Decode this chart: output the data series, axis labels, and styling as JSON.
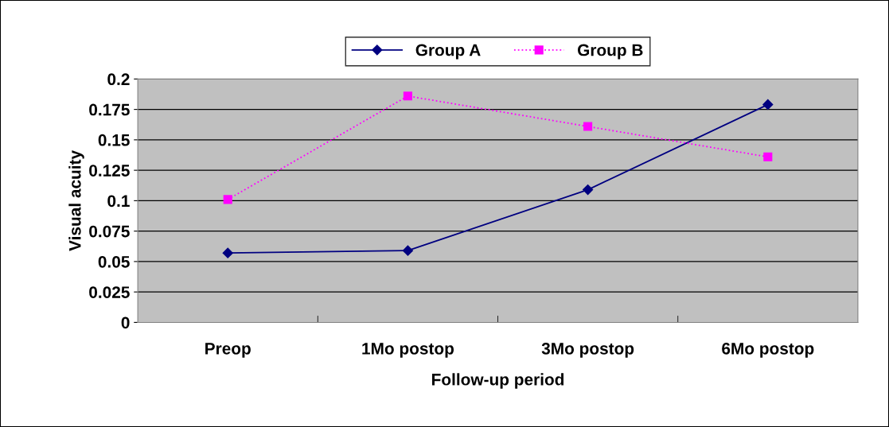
{
  "chart_data": {
    "type": "line",
    "xlabel": "Follow-up period",
    "ylabel": "Visual acuity",
    "categories": [
      "Preop",
      "1Mo postop",
      "3Mo postop",
      "6Mo postop"
    ],
    "series": [
      {
        "name": "Group A",
        "color": "#000080",
        "values": [
          0.057,
          0.059,
          0.109,
          0.179
        ],
        "marker": "diamond",
        "line_style": "solid"
      },
      {
        "name": "Group B",
        "color": "#ff00ff",
        "values": [
          0.101,
          0.186,
          0.161,
          0.136
        ],
        "marker": "square",
        "line_style": "dotted"
      }
    ],
    "ylim": [
      0,
      0.2
    ],
    "yticks": [
      0,
      0.025,
      0.05,
      0.075,
      0.1,
      0.125,
      0.15,
      0.175,
      0.2
    ],
    "grid": "y",
    "legend": "top"
  }
}
